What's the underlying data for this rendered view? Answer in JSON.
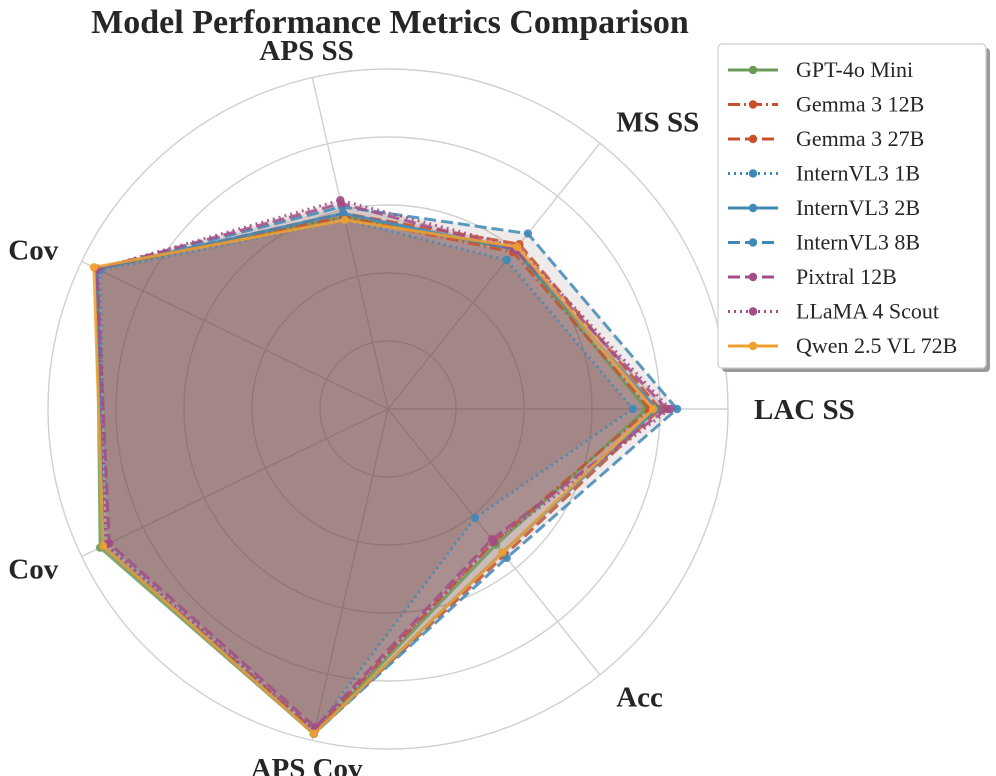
{
  "chart_data": {
    "type": "radar",
    "title": "Model Performance Metrics Comparison",
    "axes": [
      "LAC SS",
      "MS SS",
      "APS SS",
      "LAC Cov",
      "MS Cov",
      "APS Cov",
      "Acc"
    ],
    "range": [
      0,
      1
    ],
    "rings": [
      0.2,
      0.4,
      0.6,
      0.8,
      1.0
    ],
    "fill_color": "#7a4a45",
    "series": [
      {
        "name": "GPT-4o Mini",
        "color": "#6b9a58",
        "dash": "solid",
        "values": [
          0.76,
          0.6,
          0.58,
          0.95,
          0.94,
          0.98,
          0.51
        ]
      },
      {
        "name": "Gemma 3 12B",
        "color": "#c8502c",
        "dash": "dashdot",
        "values": [
          0.77,
          0.59,
          0.58,
          0.95,
          0.93,
          0.97,
          0.5
        ]
      },
      {
        "name": "Gemma 3 27B",
        "color": "#c8502c",
        "dash": "dashed",
        "values": [
          0.8,
          0.62,
          0.59,
          0.95,
          0.93,
          0.98,
          0.55
        ]
      },
      {
        "name": "InternVL3 1B",
        "color": "#3f88b8",
        "dash": "dotted",
        "values": [
          0.72,
          0.56,
          0.57,
          0.94,
          0.92,
          0.97,
          0.41
        ]
      },
      {
        "name": "InternVL3 2B",
        "color": "#3f88b8",
        "dash": "solid",
        "values": [
          0.79,
          0.6,
          0.59,
          0.95,
          0.93,
          0.98,
          0.54
        ]
      },
      {
        "name": "InternVL3 8B",
        "color": "#3f88b8",
        "dash": "dashed",
        "values": [
          0.85,
          0.66,
          0.61,
          0.95,
          0.93,
          0.98,
          0.56
        ]
      },
      {
        "name": "Pixtral 12B",
        "color": "#a24d86",
        "dash": "dashed",
        "values": [
          0.82,
          0.6,
          0.62,
          0.95,
          0.91,
          0.96,
          0.49
        ]
      },
      {
        "name": "LLaMA 4 Scout",
        "color": "#a24d86",
        "dash": "dotted",
        "values": [
          0.83,
          0.61,
          0.63,
          0.95,
          0.92,
          0.97,
          0.5
        ]
      },
      {
        "name": "Qwen 2.5 VL 72B",
        "color": "#f0a030",
        "dash": "solid",
        "values": [
          0.78,
          0.61,
          0.57,
          0.96,
          0.93,
          0.98,
          0.54
        ]
      }
    ]
  }
}
